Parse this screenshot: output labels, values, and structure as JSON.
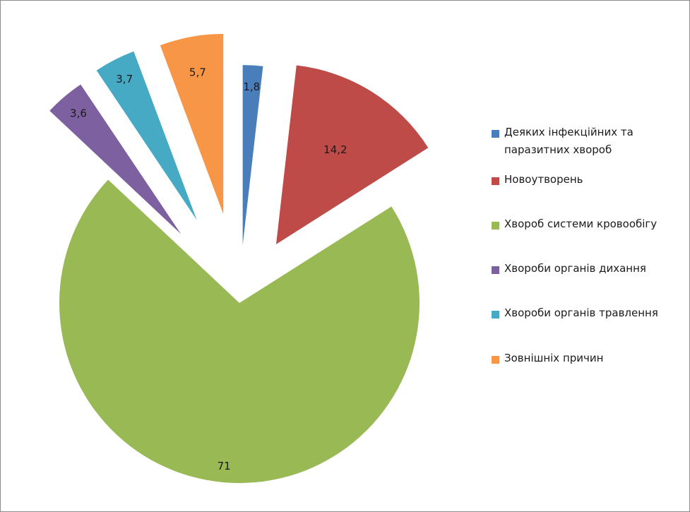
{
  "chart_data": {
    "type": "pie",
    "categories": [
      "Деяких інфекційних та паразитних хвороб",
      "Новоутворень",
      "Хвороб системи кровообігу",
      "Хвороби органів дихання",
      "Хвороби органів травлення",
      "Зовнішніх причин"
    ],
    "values": [
      1.8,
      14.2,
      71,
      3.6,
      3.7,
      5.7
    ],
    "value_labels": [
      "1,8",
      "14,2",
      "71",
      "3,6",
      "3,7",
      "5,7"
    ],
    "colors": [
      "#4a7ebb",
      "#be4b48",
      "#98b954",
      "#7d60a0",
      "#46aac5",
      "#f79646"
    ],
    "exploded": true,
    "legend_position": "right",
    "title": ""
  }
}
